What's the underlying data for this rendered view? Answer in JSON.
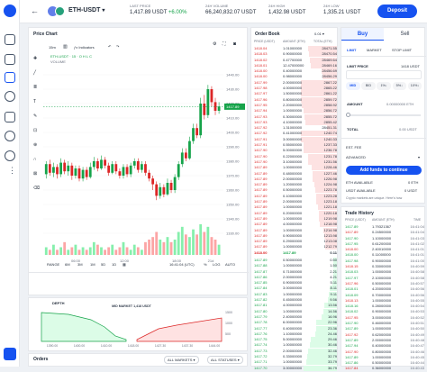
{
  "header": {
    "pair": "ETH-USDT",
    "last_price_label": "LAST PRICE",
    "last_price": "1,417.89 USDT",
    "last_change": "+6.00%",
    "volume_label": "24H VOLUME",
    "volume": "66,240,832.07 USDT",
    "high_label": "24H HIGH",
    "high": "1,432.98 USDT",
    "low_label": "24H LOW",
    "low": "1,335.21 USDT",
    "deposit": "Deposit"
  },
  "chart": {
    "title": "Price Chart",
    "interval": "15m",
    "indicators": "Indicators",
    "vol_label": "VOLUME",
    "ranges": [
      "RANGE",
      "6M",
      "3M",
      "1M",
      "5D",
      "1D"
    ],
    "time_readout": "16:41:04 (UTC)",
    "scale_opts": [
      "%",
      "LOG",
      "AUTO"
    ],
    "yticks": [
      "1440.00",
      "1430.00",
      "1420.00",
      "1410.00",
      "1400.00",
      "1390.00",
      "1380.00",
      "1370.00",
      "1360.00",
      "1350.00",
      "1340.00",
      "1330.00"
    ],
    "xticks": [
      "06:00",
      "12:00",
      "18:00",
      "21d"
    ],
    "current_price": "1417.89",
    "candles": [
      {
        "o": 1371,
        "c": 1378,
        "h": 1380,
        "l": 1368
      },
      {
        "o": 1378,
        "c": 1372,
        "h": 1381,
        "l": 1370
      },
      {
        "o": 1372,
        "c": 1376,
        "h": 1379,
        "l": 1369
      },
      {
        "o": 1376,
        "c": 1371,
        "h": 1378,
        "l": 1368
      },
      {
        "o": 1371,
        "c": 1379,
        "h": 1382,
        "l": 1369
      },
      {
        "o": 1379,
        "c": 1373,
        "h": 1381,
        "l": 1371
      },
      {
        "o": 1373,
        "c": 1377,
        "h": 1380,
        "l": 1370
      },
      {
        "o": 1377,
        "c": 1370,
        "h": 1379,
        "l": 1367
      },
      {
        "o": 1370,
        "c": 1375,
        "h": 1377,
        "l": 1368
      },
      {
        "o": 1375,
        "c": 1368,
        "h": 1377,
        "l": 1366
      },
      {
        "o": 1368,
        "c": 1374,
        "h": 1376,
        "l": 1366
      },
      {
        "o": 1374,
        "c": 1369,
        "h": 1376,
        "l": 1367
      },
      {
        "o": 1369,
        "c": 1376,
        "h": 1379,
        "l": 1368
      },
      {
        "o": 1376,
        "c": 1380,
        "h": 1383,
        "l": 1374
      },
      {
        "o": 1380,
        "c": 1375,
        "h": 1382,
        "l": 1373
      },
      {
        "o": 1375,
        "c": 1381,
        "h": 1384,
        "l": 1374
      },
      {
        "o": 1381,
        "c": 1377,
        "h": 1383,
        "l": 1375
      },
      {
        "o": 1377,
        "c": 1372,
        "h": 1379,
        "l": 1370
      },
      {
        "o": 1372,
        "c": 1378,
        "h": 1380,
        "l": 1371
      },
      {
        "o": 1378,
        "c": 1373,
        "h": 1380,
        "l": 1371
      },
      {
        "o": 1373,
        "c": 1370,
        "h": 1375,
        "l": 1368
      },
      {
        "o": 1370,
        "c": 1376,
        "h": 1378,
        "l": 1368
      },
      {
        "o": 1376,
        "c": 1371,
        "h": 1378,
        "l": 1369
      },
      {
        "o": 1371,
        "c": 1377,
        "h": 1379,
        "l": 1369
      },
      {
        "o": 1377,
        "c": 1380,
        "h": 1382,
        "l": 1375
      },
      {
        "o": 1380,
        "c": 1374,
        "h": 1382,
        "l": 1372
      },
      {
        "o": 1374,
        "c": 1378,
        "h": 1380,
        "l": 1372
      },
      {
        "o": 1378,
        "c": 1372,
        "h": 1380,
        "l": 1370
      },
      {
        "o": 1372,
        "c": 1368,
        "h": 1374,
        "l": 1366
      },
      {
        "o": 1368,
        "c": 1364,
        "h": 1370,
        "l": 1360
      },
      {
        "o": 1364,
        "c": 1356,
        "h": 1366,
        "l": 1353
      },
      {
        "o": 1356,
        "c": 1362,
        "h": 1365,
        "l": 1354
      },
      {
        "o": 1362,
        "c": 1357,
        "h": 1364,
        "l": 1355
      },
      {
        "o": 1357,
        "c": 1365,
        "h": 1368,
        "l": 1356
      },
      {
        "o": 1365,
        "c": 1360,
        "h": 1367,
        "l": 1358
      },
      {
        "o": 1360,
        "c": 1369,
        "h": 1371,
        "l": 1358
      },
      {
        "o": 1369,
        "c": 1378,
        "h": 1380,
        "l": 1367
      },
      {
        "o": 1378,
        "c": 1386,
        "h": 1389,
        "l": 1376
      },
      {
        "o": 1386,
        "c": 1382,
        "h": 1389,
        "l": 1380
      },
      {
        "o": 1382,
        "c": 1394,
        "h": 1397,
        "l": 1381
      },
      {
        "o": 1394,
        "c": 1403,
        "h": 1406,
        "l": 1392
      },
      {
        "o": 1403,
        "c": 1398,
        "h": 1406,
        "l": 1396
      },
      {
        "o": 1398,
        "c": 1420,
        "h": 1424,
        "l": 1396
      },
      {
        "o": 1420,
        "c": 1412,
        "h": 1426,
        "l": 1409
      },
      {
        "o": 1412,
        "c": 1430,
        "h": 1433,
        "l": 1410
      },
      {
        "o": 1430,
        "c": 1421,
        "h": 1432,
        "l": 1418
      },
      {
        "o": 1421,
        "c": 1415,
        "h": 1424,
        "l": 1412
      },
      {
        "o": 1415,
        "c": 1418,
        "h": 1421,
        "l": 1413
      }
    ],
    "volumes": [
      3,
      2,
      4,
      2,
      3,
      5,
      2,
      3,
      4,
      2,
      3,
      2,
      3,
      5,
      4,
      3,
      2,
      3,
      4,
      2,
      3,
      5,
      3,
      2,
      4,
      3,
      2,
      5,
      6,
      7,
      9,
      6,
      5,
      7,
      5,
      6,
      9,
      11,
      8,
      7,
      10,
      8,
      12,
      9,
      11,
      7,
      6,
      4
    ]
  },
  "depth": {
    "title": "DEPTH",
    "mid_label": "MID MARKET 1,418 USDT",
    "yticks": [
      "1500",
      "1000",
      "500"
    ],
    "xticks": [
      "1390.00",
      "1400.00",
      "1410.00",
      "1418.00",
      "1427.30",
      "1437.30",
      "1444.00"
    ]
  },
  "orderbook": {
    "title": "Order Book",
    "step": "0.01",
    "cols": [
      "PRICE (USDT)",
      "AMOUNT (ETH)",
      "TOTAL (ETH)"
    ],
    "asks": [
      [
        "1418.04",
        "1.01000000",
        "28471.55"
      ],
      [
        "1418.03",
        "0.90000000",
        "28470.54"
      ],
      [
        "1418.02",
        "0.47700000",
        "28469.64"
      ],
      [
        "1418.01",
        "12.47000000",
        "28469.16"
      ],
      [
        "1418.00",
        "0.40000000",
        "28456.69"
      ],
      [
        "1418.00",
        "0.98000000",
        "28456.29"
      ],
      [
        "1417.99",
        "2.00000000",
        "2867.22"
      ],
      [
        "1417.98",
        "4.00000000",
        "2865.22"
      ],
      [
        "1417.97",
        "1.50000000",
        "2861.22"
      ],
      [
        "1417.96",
        "0.80000000",
        "2859.72"
      ],
      [
        "1417.95",
        "2.20000000",
        "2858.92"
      ],
      [
        "1417.94",
        "1.00000000",
        "2856.72"
      ],
      [
        "1417.93",
        "0.30000000",
        "2855.72"
      ],
      [
        "1417.93",
        "4.10000000",
        "2855.42"
      ],
      [
        "1417.92",
        "1.31000000",
        "28451.31"
      ],
      [
        "1417.92",
        "0.41000000",
        "1240.74"
      ],
      [
        "1417.91",
        "3.00000000",
        "1240.33"
      ],
      [
        "1417.91",
        "0.55000000",
        "1237.33"
      ],
      [
        "1417.90",
        "5.00000000",
        "1236.78"
      ],
      [
        "1417.90",
        "0.22000000",
        "1231.78"
      ],
      [
        "1417.90",
        "3.10000000",
        "1231.56"
      ],
      [
        "1417.89",
        "1.00000000",
        "1228.46"
      ],
      [
        "1417.89",
        "0.48000000",
        "1227.46"
      ],
      [
        "1417.89",
        "2.00000000",
        "1226.98"
      ],
      [
        "1417.89",
        "1.20000000",
        "1224.98"
      ],
      [
        "1417.89",
        "0.50000000",
        "1223.78"
      ],
      [
        "1417.89",
        "0.10000000",
        "1223.28"
      ],
      [
        "1417.89",
        "2.00000000",
        "1223.18"
      ],
      [
        "1417.89",
        "1.00000000",
        "1221.18"
      ],
      [
        "1417.89",
        "0.20000000",
        "1220.18"
      ],
      [
        "1417.89",
        "1.00000000",
        "1219.98"
      ],
      [
        "1417.89",
        "4.00000000",
        "1218.98"
      ],
      [
        "1417.89",
        "1.00000000",
        "1214.98"
      ],
      [
        "1417.89",
        "0.90000000",
        "1213.98"
      ],
      [
        "1417.89",
        "0.29000000",
        "1213.08"
      ],
      [
        "1417.89",
        "1.00000000",
        "1212.79"
      ]
    ],
    "spread": [
      "1418.00",
      "1417.89",
      "0.11"
    ],
    "bids": [
      [
        "1417.89",
        "0.50000000",
        "0.50"
      ],
      [
        "1417.88",
        "1.00000000",
        "1.50"
      ],
      [
        "1417.87",
        "0.71000000",
        "2.21"
      ],
      [
        "1417.86",
        "2.00000000",
        "4.21"
      ],
      [
        "1417.85",
        "0.90000000",
        "5.11"
      ],
      [
        "1417.84",
        "3.00000000",
        "8.11"
      ],
      [
        "1417.83",
        "1.00000000",
        "9.11"
      ],
      [
        "1417.82",
        "0.45000000",
        "9.56"
      ],
      [
        "1417.81",
        "4.00000000",
        "13.56"
      ],
      [
        "1417.80",
        "1.00000000",
        "14.56"
      ],
      [
        "1417.79",
        "2.40000000",
        "16.96"
      ],
      [
        "1417.78",
        "6.00000000",
        "22.96"
      ],
      [
        "1417.77",
        "0.40000000",
        "23.36"
      ],
      [
        "1417.76",
        "1.10000000",
        "24.46"
      ],
      [
        "1417.75",
        "5.00000000",
        "29.46"
      ],
      [
        "1417.74",
        "1.00000000",
        "30.46"
      ],
      [
        "1417.73",
        "2.00000000",
        "32.46"
      ],
      [
        "1417.72",
        "0.33000000",
        "32.79"
      ],
      [
        "1417.71",
        "1.00000000",
        "33.79"
      ],
      [
        "1417.70",
        "3.00000000",
        "36.79"
      ]
    ]
  },
  "trade_form": {
    "tabs": [
      "Buy",
      "Sell"
    ],
    "order_types": [
      "LIMIT",
      "MARKET",
      "STOP LIMIT"
    ],
    "limit_price_label": "LIMIT PRICE",
    "limit_price_unit": "1418 USDT",
    "quick": [
      "MID",
      "BID",
      "1%↓",
      "5%↓",
      "10%↓"
    ],
    "amount_label": "AMOUNT",
    "amount_value": "0.00000000 ETH",
    "total_label": "TOTAL",
    "total_value": "0.00 USDT",
    "est_fee_label": "EST. FEE",
    "advanced": "ADVANCED",
    "submit": "Add funds to continue",
    "eth_avail_label": "ETH AVAILABLE",
    "eth_avail": "0 ETH",
    "usdt_avail_label": "USDT AVAILABLE",
    "usdt_avail": "0 USDT",
    "notice": "Crypto markets are unique. Here's how"
  },
  "trade_history": {
    "title": "Trade History",
    "cols": [
      "PRICE (USDT)",
      "AMOUNT (ETH)",
      "TIME"
    ],
    "rows": [
      [
        "1417.89",
        "1.79321367",
        "16:41:04"
      ],
      [
        "1417.89",
        "0.24500000",
        "16:41:04"
      ],
      [
        "1417.90",
        "1.10000000",
        "16:41:03"
      ],
      [
        "1417.95",
        "0.61200000",
        "16:41:02"
      ],
      [
        "1418.00",
        "2.40010000",
        "16:41:01"
      ],
      [
        "1418.00",
        "0.11000000",
        "16:41:01"
      ],
      [
        "1417.98",
        "0.90000000",
        "16:41:00"
      ],
      [
        "1418.15",
        "0.33000000",
        "16:40:59"
      ],
      [
        "1418.03",
        "1.00000000",
        "16:40:58"
      ],
      [
        "1417.97",
        "2.10000000",
        "16:40:58"
      ],
      [
        "1417.96",
        "0.50000000",
        "16:40:57"
      ],
      [
        "1418.01",
        "4.20000000",
        "16:40:56"
      ],
      [
        "1418.09",
        "0.70000000",
        "16:40:56"
      ],
      [
        "1418.13",
        "1.00000000",
        "16:40:55"
      ],
      [
        "1418.16",
        "0.28000000",
        "16:40:54"
      ],
      [
        "1418.02",
        "0.90000000",
        "16:40:53"
      ],
      [
        "1417.95",
        "3.00000000",
        "16:40:52"
      ],
      [
        "1417.90",
        "0.46000000",
        "16:40:51"
      ],
      [
        "1417.89",
        "1.00000000",
        "16:40:50"
      ],
      [
        "1417.92",
        "0.62000000",
        "16:40:49"
      ],
      [
        "1417.89",
        "2.00000000",
        "16:40:48"
      ],
      [
        "1417.94",
        "0.40000000",
        "16:40:47"
      ],
      [
        "1417.90",
        "0.80000000",
        "16:40:46"
      ],
      [
        "1417.89",
        "1.00000000",
        "16:40:45"
      ],
      [
        "1417.86",
        "0.50000000",
        "16:40:44"
      ],
      [
        "1417.84",
        "0.36000000",
        "16:40:43"
      ]
    ]
  },
  "orders": {
    "title": "Orders",
    "filter1": "ALL MARKETS",
    "filter2": "ALL STATUSES"
  },
  "icons": [
    "home-icon",
    "bar-chart-icon",
    "swap-icon",
    "percent-icon",
    "bank-icon",
    "layers-icon",
    "globe-icon",
    "more-icon",
    "gift-icon"
  ],
  "colors": {
    "accent": "#1652f0",
    "green": "#16a34a",
    "red": "#dc2626"
  }
}
